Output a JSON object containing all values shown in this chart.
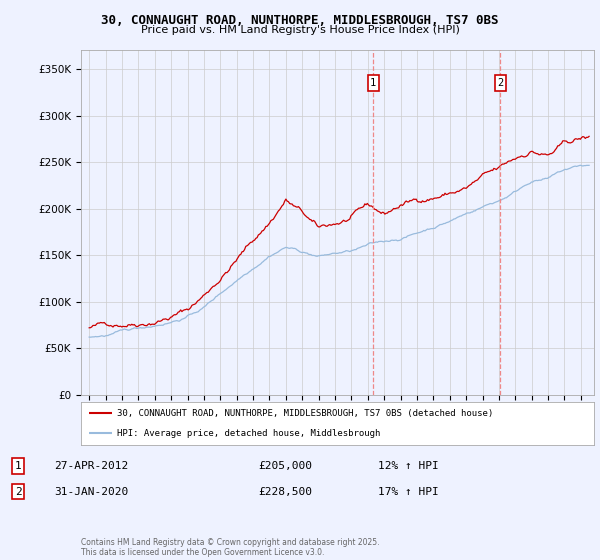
{
  "title_line1": "30, CONNAUGHT ROAD, NUNTHORPE, MIDDLESBROUGH, TS7 0BS",
  "title_line2": "Price paid vs. HM Land Registry's House Price Index (HPI)",
  "ylabel_ticks": [
    "£0",
    "£50K",
    "£100K",
    "£150K",
    "£200K",
    "£250K",
    "£300K",
    "£350K"
  ],
  "ytick_values": [
    0,
    50000,
    100000,
    150000,
    200000,
    250000,
    300000,
    350000
  ],
  "ylim": [
    0,
    370000
  ],
  "xlim_start": 1994.5,
  "xlim_end": 2025.8,
  "background_color": "#eef2ff",
  "plot_bg_color": "#eef2ff",
  "grid_color": "#cccccc",
  "red_line_color": "#cc0000",
  "blue_line_color": "#99bbdd",
  "vline_color": "#ee8888",
  "marker1_x": 2012.33,
  "marker2_x": 2020.08,
  "legend_label1": "30, CONNAUGHT ROAD, NUNTHORPE, MIDDLESBROUGH, TS7 0BS (detached house)",
  "legend_label2": "HPI: Average price, detached house, Middlesbrough",
  "table_row1": [
    "1",
    "27-APR-2012",
    "£205,000",
    "12% ↑ HPI"
  ],
  "table_row2": [
    "2",
    "31-JAN-2020",
    "£228,500",
    "17% ↑ HPI"
  ],
  "footer": "Contains HM Land Registry data © Crown copyright and database right 2025.\nThis data is licensed under the Open Government Licence v3.0.",
  "red_key_points_x": [
    1995,
    1996,
    1997,
    1998,
    1999,
    2000,
    2001,
    2002,
    2003,
    2004,
    2005,
    2006,
    2007,
    2008,
    2009,
    2010,
    2011,
    2012,
    2013,
    2014,
    2015,
    2016,
    2017,
    2018,
    2019,
    2020,
    2021,
    2022,
    2023,
    2024,
    2025
  ],
  "red_key_points_y": [
    72000,
    75000,
    78000,
    82000,
    87000,
    93000,
    100000,
    115000,
    135000,
    155000,
    175000,
    195000,
    220000,
    205000,
    185000,
    190000,
    195000,
    205000,
    195000,
    205000,
    210000,
    215000,
    220000,
    225000,
    235000,
    240000,
    250000,
    260000,
    255000,
    265000,
    270000
  ],
  "blue_key_points_x": [
    1995,
    1996,
    1997,
    1998,
    1999,
    2000,
    2001,
    2002,
    2003,
    2004,
    2005,
    2006,
    2007,
    2008,
    2009,
    2010,
    2011,
    2012,
    2013,
    2014,
    2015,
    2016,
    2017,
    2018,
    2019,
    2020,
    2021,
    2022,
    2023,
    2024,
    2025
  ],
  "blue_key_points_y": [
    62000,
    64000,
    67000,
    70000,
    74000,
    79000,
    85000,
    95000,
    110000,
    125000,
    140000,
    155000,
    165000,
    160000,
    155000,
    158000,
    160000,
    165000,
    168000,
    172000,
    178000,
    185000,
    192000,
    200000,
    208000,
    215000,
    225000,
    238000,
    240000,
    248000,
    252000
  ]
}
